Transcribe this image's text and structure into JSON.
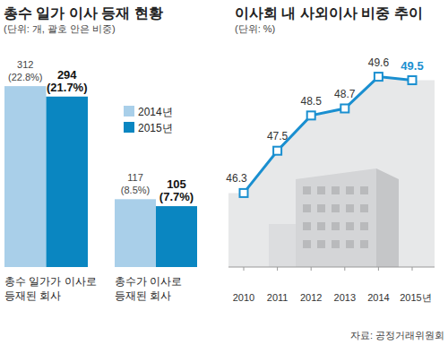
{
  "chart_data": [
    {
      "type": "bar",
      "title": "총수 일가 이사 등재 현황",
      "subtitle": "(단위: 개, 괄호 안은 비중)",
      "categories": [
        "총수 일가가 이사로\n등재된 회사",
        "총수가 이사로\n등재된 회사"
      ],
      "series": [
        {
          "name": "2014년",
          "color": "#a9cfe9",
          "values": [
            312,
            117
          ],
          "shares": [
            22.8,
            8.5
          ],
          "share_labels": [
            "(22.8%)",
            "(8.5%)"
          ]
        },
        {
          "name": "2015년",
          "color": "#0a86c1",
          "values": [
            294,
            105
          ],
          "shares": [
            21.7,
            7.7
          ],
          "share_labels": [
            "(21.7%)",
            "(7.7%)"
          ]
        }
      ],
      "ylim": [
        0,
        340
      ],
      "tick_labels": false,
      "data_labels": true,
      "legend": "center"
    },
    {
      "type": "line",
      "title": "이사회 내 사외이사 비중 추이",
      "subtitle": "(단위: %)",
      "categories": [
        "2010",
        "2011",
        "2012",
        "2013",
        "2014",
        "2015년"
      ],
      "values": [
        46.3,
        47.5,
        48.5,
        48.7,
        49.6,
        49.5
      ],
      "color": "#1a8fd0",
      "ylim": [
        44.2,
        50.2
      ],
      "tick_labels": "x",
      "data_labels": true,
      "marker": "square"
    }
  ],
  "source": "자료: 공정거래위원회"
}
